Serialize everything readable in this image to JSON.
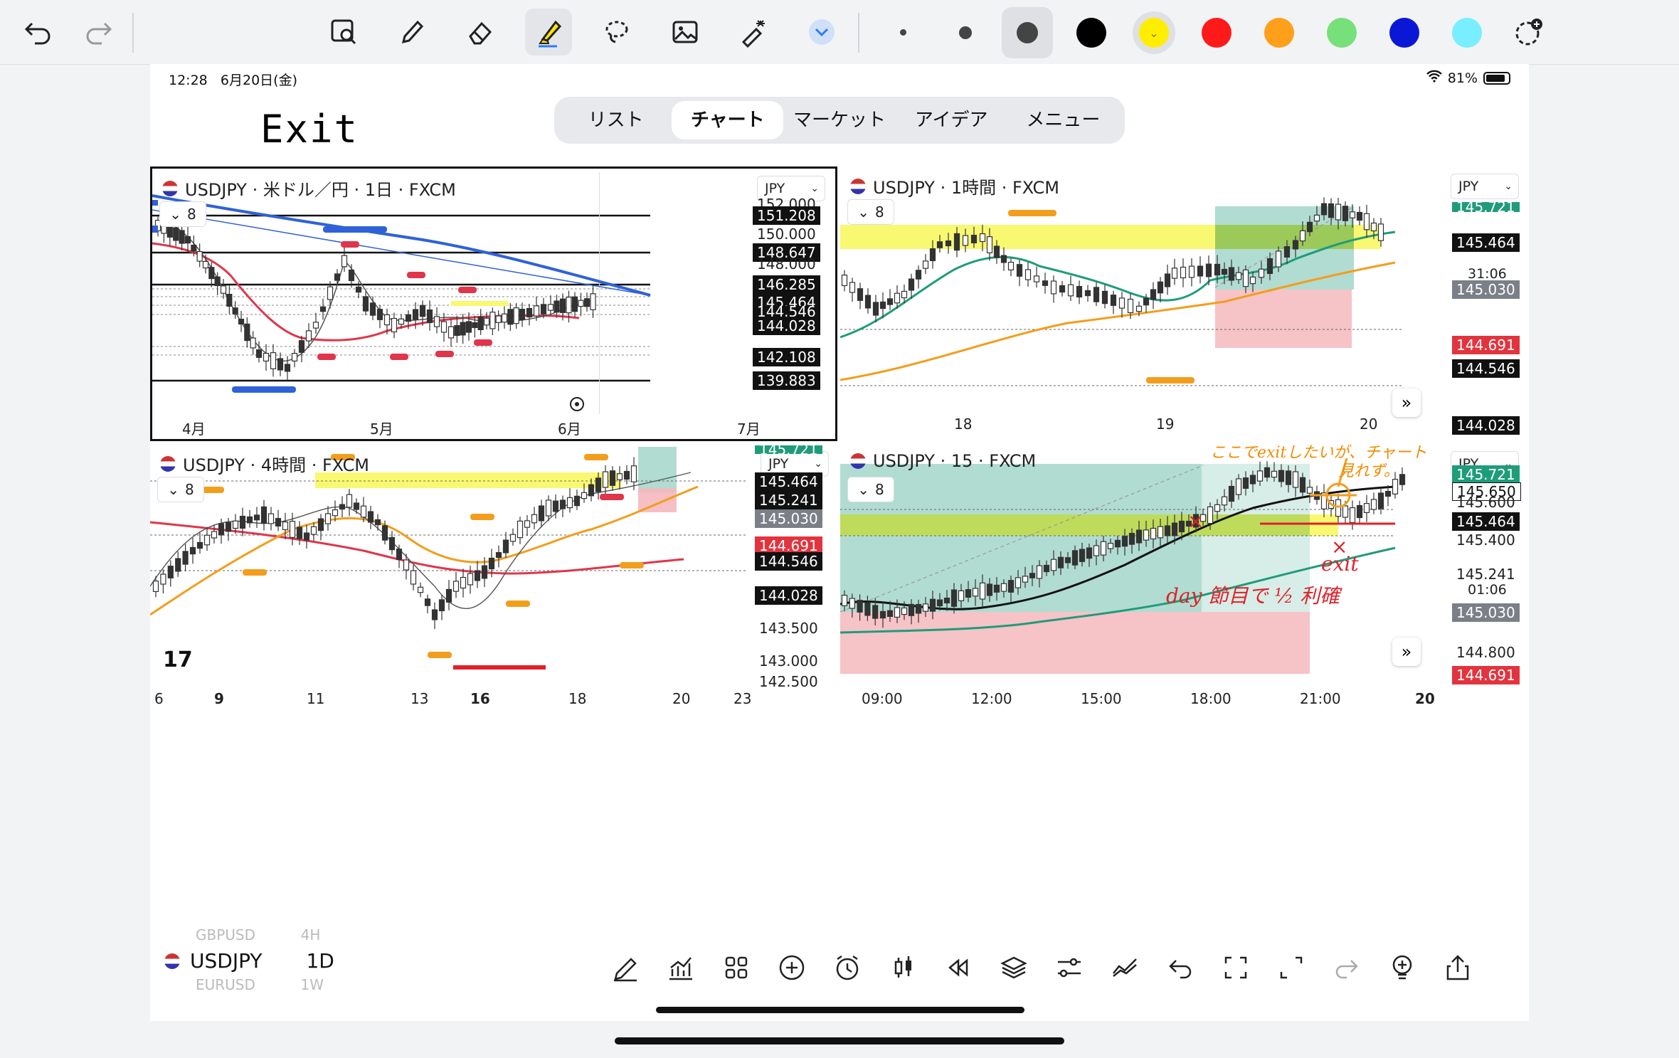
{
  "status": {
    "time": "12:28",
    "date": "6月20日(金)",
    "battery": "81%"
  },
  "page_title": "Exit",
  "tabs": [
    "リスト",
    "チャート",
    "マーケット",
    "アイデア",
    "メニュー"
  ],
  "active_tab": 1,
  "colors": {
    "highlight_yellow": "#f9f871",
    "sel_yellow": "#ffee00",
    "red": "#ff1a1a",
    "orange": "#ff9f1a",
    "green": "#76e07a",
    "blue": "#0a18d6",
    "cyan": "#78eeff",
    "teal_box": "#1f9c7a",
    "red_box": "#f5b8bd"
  },
  "charts": {
    "daily": {
      "title": "USDJPY · 米ドル／円 · 1日 · FXCM",
      "count": "8",
      "currency": "JPY",
      "y_labels": [
        "152.000",
        "150.000",
        "148.000"
      ],
      "price_levels": [
        "151.208",
        "148.647",
        "146.285",
        "145.464",
        "144.546",
        "144.028",
        "142.108",
        "139.883"
      ],
      "x_labels": [
        "4月",
        "5月",
        "6月",
        "7月"
      ]
    },
    "h1": {
      "title": "USDJPY · 1時間 · FXCM",
      "count": "8",
      "currency": "JPY",
      "price_levels": [
        "145.721",
        "145.464",
        "145.030",
        "144.691",
        "144.546",
        "144.028"
      ],
      "countdown": "31:06",
      "x_labels": [
        "18",
        "19",
        "20"
      ]
    },
    "h4": {
      "title": "USDJPY · 4時間 · FXCM",
      "count": "8",
      "currency": "JPY",
      "price_levels": [
        "145.721",
        "145.464",
        "145.241",
        "145.030",
        "144.691",
        "144.546",
        "144.028"
      ],
      "y_labels": [
        "143.500",
        "143.000",
        "142.500"
      ],
      "x_labels": [
        "6",
        "9",
        "11",
        "13",
        "16",
        "18",
        "20",
        "23"
      ]
    },
    "m15": {
      "title": "USDJPY · 15 · FXCM",
      "count": "8",
      "currency": "JPY",
      "price_levels": [
        "145.721",
        "145.650",
        "145.600",
        "145.464",
        "145.400",
        "145.241",
        "145.030",
        "144.800",
        "144.691"
      ],
      "countdown": "01:06",
      "x_labels": [
        "09:00",
        "12:00",
        "15:00",
        "18:00",
        "21:00",
        "20"
      ],
      "annotations": {
        "note1": "ここでexitしたいが、チャート",
        "note2": "見れず。",
        "cross": "×",
        "exit": "exit",
        "day": "day 節目で ½ 利確"
      }
    }
  },
  "bottom": {
    "symbol": "USDJPY",
    "interval": "1D",
    "ghost_top": "GBPUSD",
    "ghost_top_int": "4H",
    "ghost_bottom": "EURUSD",
    "ghost_bottom_int": "1W"
  }
}
